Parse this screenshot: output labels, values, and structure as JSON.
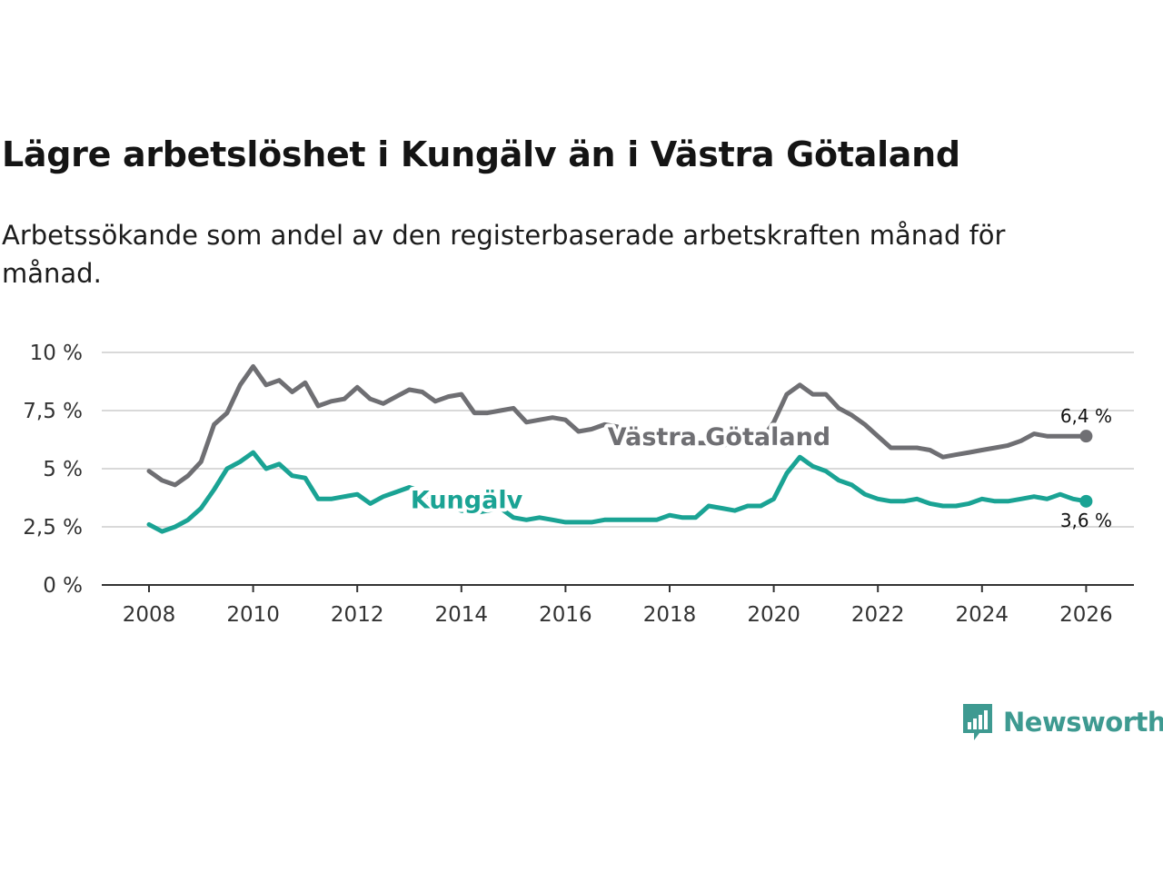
{
  "title": "Lägre arbetslöshet i Kungälv än i Västra Götaland",
  "subtitle": "Arbetssökande som andel av den registerbaserade arbetskraften månad för månad.",
  "brand": {
    "name": "Newsworthy",
    "icon": "newsworthy-logo-icon",
    "color": "#3e9a91"
  },
  "chart_data": {
    "type": "line",
    "title": "Lägre arbetslöshet i Kungälv än i Västra Götaland",
    "xlabel": "",
    "ylabel": "",
    "xlim": [
      2007.2,
      2027.0
    ],
    "ylim": [
      0,
      10
    ],
    "grid": true,
    "y_ticks": [
      {
        "value": 0,
        "label": "0 %"
      },
      {
        "value": 2.5,
        "label": "2,5 %"
      },
      {
        "value": 5,
        "label": "5 %"
      },
      {
        "value": 7.5,
        "label": "7,5 %"
      },
      {
        "value": 10,
        "label": "10 %"
      }
    ],
    "x_ticks": [
      {
        "value": 2008,
        "label": "2008"
      },
      {
        "value": 2010,
        "label": "2010"
      },
      {
        "value": 2012,
        "label": "2012"
      },
      {
        "value": 2014,
        "label": "2014"
      },
      {
        "value": 2016,
        "label": "2016"
      },
      {
        "value": 2018,
        "label": "2018"
      },
      {
        "value": 2020,
        "label": "2020"
      },
      {
        "value": 2022,
        "label": "2022"
      },
      {
        "value": 2024,
        "label": "2024"
      },
      {
        "value": 2026,
        "label": "2026"
      }
    ],
    "series": [
      {
        "name": "Västra Götaland",
        "color": "#6f6f73",
        "end_label": "6,4 %",
        "x": [
          2008.0,
          2008.25,
          2008.5,
          2008.75,
          2009.0,
          2009.25,
          2009.5,
          2009.75,
          2010.0,
          2010.25,
          2010.5,
          2010.75,
          2011.0,
          2011.25,
          2011.5,
          2011.75,
          2012.0,
          2012.25,
          2012.5,
          2012.75,
          2013.0,
          2013.25,
          2013.5,
          2013.75,
          2014.0,
          2014.25,
          2014.5,
          2014.75,
          2015.0,
          2015.25,
          2015.5,
          2015.75,
          2016.0,
          2016.25,
          2016.5,
          2016.75,
          2017.0,
          2017.25,
          2017.5,
          2017.75,
          2018.0,
          2018.25,
          2018.5,
          2018.75,
          2019.0,
          2019.25,
          2019.5,
          2019.75,
          2020.0,
          2020.25,
          2020.5,
          2020.75,
          2021.0,
          2021.25,
          2021.5,
          2021.75,
          2022.0,
          2022.25,
          2022.5,
          2022.75,
          2023.0,
          2023.25,
          2023.5,
          2023.75,
          2024.0,
          2024.25,
          2024.5,
          2024.75,
          2025.0,
          2025.25,
          2025.5,
          2025.75,
          2026.0
        ],
        "values": [
          4.9,
          4.5,
          4.3,
          4.7,
          5.3,
          6.9,
          7.4,
          8.6,
          9.4,
          8.6,
          8.8,
          8.3,
          8.7,
          7.7,
          7.9,
          8.0,
          8.5,
          8.0,
          7.8,
          8.1,
          8.4,
          8.3,
          7.9,
          8.1,
          8.2,
          7.4,
          7.4,
          7.5,
          7.6,
          7.0,
          7.1,
          7.2,
          7.1,
          6.6,
          6.7,
          6.9,
          6.8,
          6.5,
          6.4,
          6.5,
          6.5,
          6.2,
          6.1,
          6.1,
          6.0,
          6.1,
          6.1,
          6.2,
          7.0,
          8.2,
          8.6,
          8.2,
          8.2,
          7.6,
          7.3,
          6.9,
          6.4,
          5.9,
          5.9,
          5.9,
          5.8,
          5.5,
          5.6,
          5.7,
          5.8,
          5.9,
          6.0,
          6.2,
          6.5,
          6.4,
          6.4,
          6.4,
          6.4
        ]
      },
      {
        "name": "Kungälv",
        "color": "#1aa394",
        "end_label": "3,6 %",
        "x": [
          2008.0,
          2008.25,
          2008.5,
          2008.75,
          2009.0,
          2009.25,
          2009.5,
          2009.75,
          2010.0,
          2010.25,
          2010.5,
          2010.75,
          2011.0,
          2011.25,
          2011.5,
          2011.75,
          2012.0,
          2012.25,
          2012.5,
          2012.75,
          2013.0,
          2013.25,
          2013.5,
          2013.75,
          2014.0,
          2014.25,
          2014.5,
          2014.75,
          2015.0,
          2015.25,
          2015.5,
          2015.75,
          2016.0,
          2016.25,
          2016.5,
          2016.75,
          2017.0,
          2017.25,
          2017.5,
          2017.75,
          2018.0,
          2018.25,
          2018.5,
          2018.75,
          2019.0,
          2019.25,
          2019.5,
          2019.75,
          2020.0,
          2020.25,
          2020.5,
          2020.75,
          2021.0,
          2021.25,
          2021.5,
          2021.75,
          2022.0,
          2022.25,
          2022.5,
          2022.75,
          2023.0,
          2023.25,
          2023.5,
          2023.75,
          2024.0,
          2024.25,
          2024.5,
          2024.75,
          2025.0,
          2025.25,
          2025.5,
          2025.75,
          2026.0
        ],
        "values": [
          2.6,
          2.3,
          2.5,
          2.8,
          3.3,
          4.1,
          5.0,
          5.3,
          5.7,
          5.0,
          5.2,
          4.7,
          4.6,
          3.7,
          3.7,
          3.8,
          3.9,
          3.5,
          3.8,
          4.0,
          4.2,
          4.0,
          3.6,
          3.4,
          3.2,
          3.1,
          3.2,
          3.3,
          2.9,
          2.8,
          2.9,
          2.8,
          2.7,
          2.7,
          2.7,
          2.8,
          2.8,
          2.8,
          2.8,
          2.8,
          3.0,
          2.9,
          2.9,
          3.4,
          3.3,
          3.2,
          3.4,
          3.4,
          3.7,
          4.8,
          5.5,
          5.1,
          4.9,
          4.5,
          4.3,
          3.9,
          3.7,
          3.6,
          3.6,
          3.7,
          3.5,
          3.4,
          3.4,
          3.5,
          3.7,
          3.6,
          3.6,
          3.7,
          3.8,
          3.7,
          3.9,
          3.7,
          3.6
        ]
      }
    ]
  }
}
